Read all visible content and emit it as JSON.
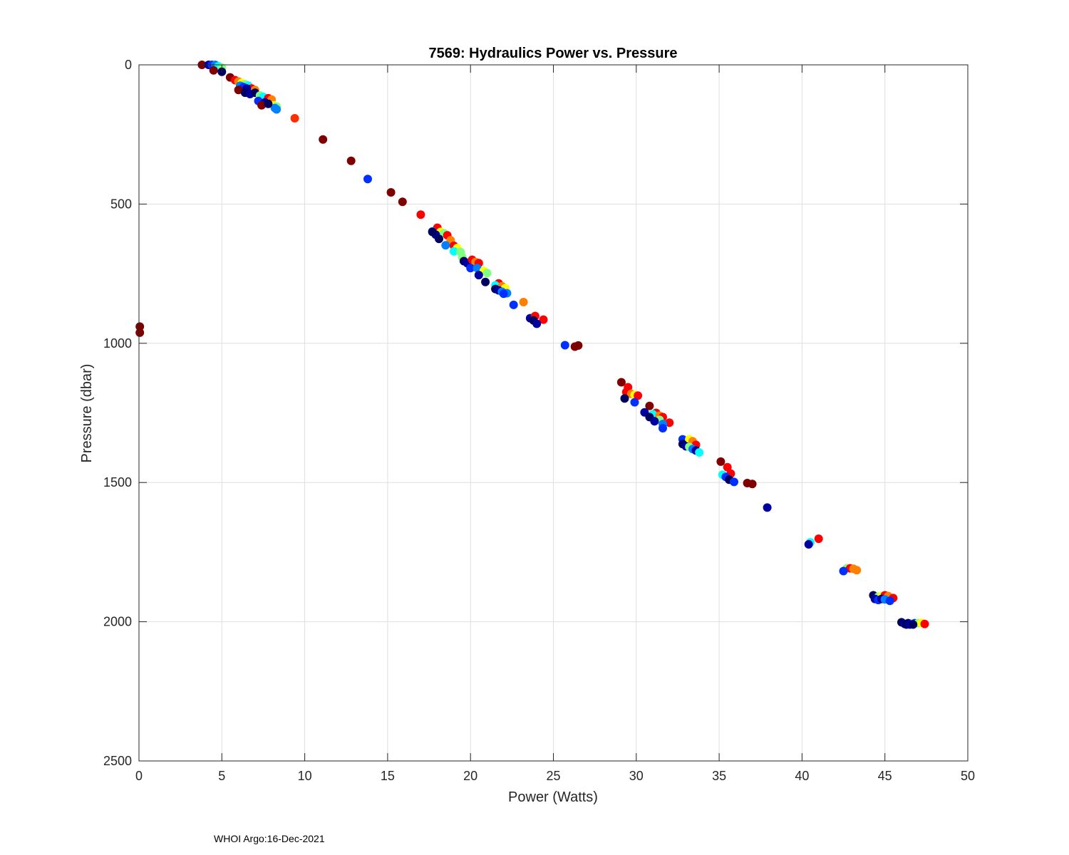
{
  "footer": {
    "note": "WHOI Argo:16-Dec-2021"
  },
  "chart_data": {
    "type": "scatter",
    "title": "7569: Hydraulics Power vs. Pressure",
    "xlabel": "Power (Watts)",
    "ylabel": "Pressure (dbar)",
    "xlim": [
      0,
      50
    ],
    "ylim": [
      0,
      2500
    ],
    "y_reversed": true,
    "xticks": [
      0,
      5,
      10,
      15,
      20,
      25,
      30,
      35,
      40,
      45,
      50
    ],
    "yticks": [
      0,
      500,
      1000,
      1500,
      2000,
      2500
    ],
    "grid": true,
    "colormap": "jet",
    "colors": {
      "darkred": "#7f0000",
      "red": "#ff0000",
      "redorange": "#ff3000",
      "orange": "#ff8000",
      "yellow": "#ffff00",
      "lime": "#80ff80",
      "cyan": "#00ffff",
      "sky": "#0080ff",
      "blue": "#0030ff",
      "navy": "#0000a0",
      "darknavy": "#00005f"
    },
    "points": [
      {
        "x": 3.8,
        "y": 0,
        "c": "darkred"
      },
      {
        "x": 4.2,
        "y": 0,
        "c": "navy"
      },
      {
        "x": 4.4,
        "y": 0,
        "c": "blue"
      },
      {
        "x": 4.6,
        "y": 0,
        "c": "sky"
      },
      {
        "x": 4.8,
        "y": 5,
        "c": "cyan"
      },
      {
        "x": 5.0,
        "y": 10,
        "c": "lime"
      },
      {
        "x": 4.5,
        "y": 20,
        "c": "darkred"
      },
      {
        "x": 5.0,
        "y": 25,
        "c": "darknavy"
      },
      {
        "x": 5.5,
        "y": 45,
        "c": "darkred"
      },
      {
        "x": 5.8,
        "y": 55,
        "c": "red"
      },
      {
        "x": 6.0,
        "y": 60,
        "c": "orange"
      },
      {
        "x": 6.2,
        "y": 65,
        "c": "yellow"
      },
      {
        "x": 6.4,
        "y": 70,
        "c": "lime"
      },
      {
        "x": 6.6,
        "y": 75,
        "c": "cyan"
      },
      {
        "x": 6.8,
        "y": 85,
        "c": "red"
      },
      {
        "x": 7.0,
        "y": 90,
        "c": "orange"
      },
      {
        "x": 6.1,
        "y": 75,
        "c": "sky"
      },
      {
        "x": 6.3,
        "y": 80,
        "c": "blue"
      },
      {
        "x": 6.5,
        "y": 85,
        "c": "navy"
      },
      {
        "x": 6.0,
        "y": 90,
        "c": "darkred"
      },
      {
        "x": 6.4,
        "y": 100,
        "c": "darknavy"
      },
      {
        "x": 6.7,
        "y": 105,
        "c": "navy"
      },
      {
        "x": 7.0,
        "y": 100,
        "c": "darknavy"
      },
      {
        "x": 7.3,
        "y": 110,
        "c": "lime"
      },
      {
        "x": 7.5,
        "y": 115,
        "c": "cyan"
      },
      {
        "x": 7.8,
        "y": 120,
        "c": "red"
      },
      {
        "x": 8.0,
        "y": 125,
        "c": "orange"
      },
      {
        "x": 7.2,
        "y": 130,
        "c": "blue"
      },
      {
        "x": 7.6,
        "y": 135,
        "c": "navy"
      },
      {
        "x": 7.4,
        "y": 145,
        "c": "darkred"
      },
      {
        "x": 8.1,
        "y": 145,
        "c": "yellow"
      },
      {
        "x": 8.3,
        "y": 150,
        "c": "lime"
      },
      {
        "x": 8.2,
        "y": 155,
        "c": "sky"
      },
      {
        "x": 8.3,
        "y": 160,
        "c": "sky"
      },
      {
        "x": 7.8,
        "y": 140,
        "c": "darknavy"
      },
      {
        "x": 9.4,
        "y": 192,
        "c": "redorange"
      },
      {
        "x": 11.1,
        "y": 268,
        "c": "darkred"
      },
      {
        "x": 12.8,
        "y": 345,
        "c": "darkred"
      },
      {
        "x": 13.8,
        "y": 410,
        "c": "blue"
      },
      {
        "x": 15.2,
        "y": 458,
        "c": "darkred"
      },
      {
        "x": 15.9,
        "y": 492,
        "c": "darkred"
      },
      {
        "x": 17.0,
        "y": 538,
        "c": "red"
      },
      {
        "x": 18.0,
        "y": 585,
        "c": "red"
      },
      {
        "x": 18.2,
        "y": 600,
        "c": "yellow"
      },
      {
        "x": 18.4,
        "y": 605,
        "c": "lime"
      },
      {
        "x": 18.6,
        "y": 612,
        "c": "red"
      },
      {
        "x": 17.7,
        "y": 598,
        "c": "sky"
      },
      {
        "x": 17.9,
        "y": 610,
        "c": "navy"
      },
      {
        "x": 17.7,
        "y": 600,
        "c": "darknavy"
      },
      {
        "x": 18.1,
        "y": 625,
        "c": "darknavy"
      },
      {
        "x": 18.8,
        "y": 630,
        "c": "orange"
      },
      {
        "x": 18.5,
        "y": 648,
        "c": "sky"
      },
      {
        "x": 19.0,
        "y": 650,
        "c": "red"
      },
      {
        "x": 19.2,
        "y": 658,
        "c": "yellow"
      },
      {
        "x": 19.0,
        "y": 670,
        "c": "cyan"
      },
      {
        "x": 19.4,
        "y": 672,
        "c": "lime"
      },
      {
        "x": 19.5,
        "y": 690,
        "c": "lime"
      },
      {
        "x": 19.6,
        "y": 705,
        "c": "darknavy"
      },
      {
        "x": 19.8,
        "y": 712,
        "c": "navy"
      },
      {
        "x": 20.1,
        "y": 700,
        "c": "red"
      },
      {
        "x": 20.3,
        "y": 708,
        "c": "orange"
      },
      {
        "x": 20.5,
        "y": 712,
        "c": "red"
      },
      {
        "x": 20.0,
        "y": 730,
        "c": "blue"
      },
      {
        "x": 20.4,
        "y": 730,
        "c": "sky"
      },
      {
        "x": 20.8,
        "y": 740,
        "c": "yellow"
      },
      {
        "x": 21.0,
        "y": 748,
        "c": "lime"
      },
      {
        "x": 20.5,
        "y": 755,
        "c": "navy"
      },
      {
        "x": 20.9,
        "y": 780,
        "c": "darknavy"
      },
      {
        "x": 21.7,
        "y": 785,
        "c": "red"
      },
      {
        "x": 21.5,
        "y": 792,
        "c": "cyan"
      },
      {
        "x": 21.9,
        "y": 795,
        "c": "orange"
      },
      {
        "x": 22.1,
        "y": 802,
        "c": "yellow"
      },
      {
        "x": 21.5,
        "y": 805,
        "c": "darknavy"
      },
      {
        "x": 21.7,
        "y": 810,
        "c": "navy"
      },
      {
        "x": 21.9,
        "y": 815,
        "c": "sky"
      },
      {
        "x": 22.2,
        "y": 820,
        "c": "sky"
      },
      {
        "x": 22.0,
        "y": 822,
        "c": "blue"
      },
      {
        "x": 22.6,
        "y": 862,
        "c": "blue"
      },
      {
        "x": 23.2,
        "y": 852,
        "c": "orange"
      },
      {
        "x": 23.6,
        "y": 910,
        "c": "navy"
      },
      {
        "x": 23.9,
        "y": 902,
        "c": "red"
      },
      {
        "x": 23.8,
        "y": 918,
        "c": "darknavy"
      },
      {
        "x": 24.4,
        "y": 915,
        "c": "red"
      },
      {
        "x": 24.0,
        "y": 930,
        "c": "navy"
      },
      {
        "x": 0.05,
        "y": 940,
        "c": "darkred"
      },
      {
        "x": 0.05,
        "y": 962,
        "c": "darkred"
      },
      {
        "x": 25.7,
        "y": 1007,
        "c": "blue"
      },
      {
        "x": 26.3,
        "y": 1012,
        "c": "darkred"
      },
      {
        "x": 26.5,
        "y": 1008,
        "c": "darkred"
      },
      {
        "x": 29.1,
        "y": 1140,
        "c": "darkred"
      },
      {
        "x": 29.5,
        "y": 1158,
        "c": "red"
      },
      {
        "x": 29.4,
        "y": 1175,
        "c": "red"
      },
      {
        "x": 29.7,
        "y": 1182,
        "c": "orange"
      },
      {
        "x": 29.9,
        "y": 1185,
        "c": "yellow"
      },
      {
        "x": 30.1,
        "y": 1188,
        "c": "red"
      },
      {
        "x": 29.3,
        "y": 1198,
        "c": "darknavy"
      },
      {
        "x": 29.9,
        "y": 1212,
        "c": "blue"
      },
      {
        "x": 30.8,
        "y": 1225,
        "c": "darkred"
      },
      {
        "x": 31.2,
        "y": 1250,
        "c": "red"
      },
      {
        "x": 30.5,
        "y": 1248,
        "c": "navy"
      },
      {
        "x": 31.0,
        "y": 1255,
        "c": "cyan"
      },
      {
        "x": 31.4,
        "y": 1260,
        "c": "orange"
      },
      {
        "x": 31.6,
        "y": 1265,
        "c": "red"
      },
      {
        "x": 30.8,
        "y": 1265,
        "c": "darknavy"
      },
      {
        "x": 31.4,
        "y": 1275,
        "c": "lime"
      },
      {
        "x": 31.1,
        "y": 1280,
        "c": "navy"
      },
      {
        "x": 32.0,
        "y": 1285,
        "c": "red"
      },
      {
        "x": 31.6,
        "y": 1290,
        "c": "sky"
      },
      {
        "x": 31.6,
        "y": 1305,
        "c": "blue"
      },
      {
        "x": 32.8,
        "y": 1345,
        "c": "blue"
      },
      {
        "x": 33.2,
        "y": 1345,
        "c": "yellow"
      },
      {
        "x": 33.4,
        "y": 1352,
        "c": "orange"
      },
      {
        "x": 33.6,
        "y": 1365,
        "c": "red"
      },
      {
        "x": 32.8,
        "y": 1362,
        "c": "darknavy"
      },
      {
        "x": 33.0,
        "y": 1370,
        "c": "navy"
      },
      {
        "x": 33.2,
        "y": 1372,
        "c": "lime"
      },
      {
        "x": 33.4,
        "y": 1380,
        "c": "sky"
      },
      {
        "x": 33.6,
        "y": 1385,
        "c": "navy"
      },
      {
        "x": 33.8,
        "y": 1392,
        "c": "cyan"
      },
      {
        "x": 35.1,
        "y": 1425,
        "c": "darkred"
      },
      {
        "x": 35.5,
        "y": 1445,
        "c": "red"
      },
      {
        "x": 35.7,
        "y": 1468,
        "c": "red"
      },
      {
        "x": 35.2,
        "y": 1472,
        "c": "cyan"
      },
      {
        "x": 35.4,
        "y": 1480,
        "c": "blue"
      },
      {
        "x": 35.6,
        "y": 1490,
        "c": "darknavy"
      },
      {
        "x": 35.9,
        "y": 1498,
        "c": "blue"
      },
      {
        "x": 36.7,
        "y": 1502,
        "c": "darkred"
      },
      {
        "x": 37.0,
        "y": 1505,
        "c": "darkred"
      },
      {
        "x": 37.9,
        "y": 1590,
        "c": "navy"
      },
      {
        "x": 40.5,
        "y": 1715,
        "c": "cyan"
      },
      {
        "x": 40.4,
        "y": 1722,
        "c": "navy"
      },
      {
        "x": 41.0,
        "y": 1702,
        "c": "red"
      },
      {
        "x": 42.7,
        "y": 1808,
        "c": "lime"
      },
      {
        "x": 42.9,
        "y": 1808,
        "c": "red"
      },
      {
        "x": 43.1,
        "y": 1810,
        "c": "orange"
      },
      {
        "x": 42.5,
        "y": 1818,
        "c": "blue"
      },
      {
        "x": 43.3,
        "y": 1815,
        "c": "orange"
      },
      {
        "x": 44.3,
        "y": 1905,
        "c": "darknavy"
      },
      {
        "x": 44.6,
        "y": 1910,
        "c": "lime"
      },
      {
        "x": 44.8,
        "y": 1908,
        "c": "yellow"
      },
      {
        "x": 45.0,
        "y": 1905,
        "c": "red"
      },
      {
        "x": 45.2,
        "y": 1908,
        "c": "orange"
      },
      {
        "x": 45.5,
        "y": 1915,
        "c": "red"
      },
      {
        "x": 44.4,
        "y": 1918,
        "c": "navy"
      },
      {
        "x": 44.6,
        "y": 1922,
        "c": "blue"
      },
      {
        "x": 44.8,
        "y": 1918,
        "c": "navy"
      },
      {
        "x": 45.0,
        "y": 1920,
        "c": "sky"
      },
      {
        "x": 45.3,
        "y": 1925,
        "c": "blue"
      },
      {
        "x": 46.0,
        "y": 2002,
        "c": "darknavy"
      },
      {
        "x": 46.2,
        "y": 2008,
        "c": "navy"
      },
      {
        "x": 46.4,
        "y": 2005,
        "c": "darknavy"
      },
      {
        "x": 46.6,
        "y": 2008,
        "c": "sky"
      },
      {
        "x": 46.8,
        "y": 2005,
        "c": "blue"
      },
      {
        "x": 47.0,
        "y": 2005,
        "c": "lime"
      },
      {
        "x": 47.2,
        "y": 2004,
        "c": "yellow"
      },
      {
        "x": 47.4,
        "y": 2008,
        "c": "red"
      },
      {
        "x": 46.3,
        "y": 2010,
        "c": "darknavy"
      },
      {
        "x": 46.5,
        "y": 2010,
        "c": "navy"
      },
      {
        "x": 46.7,
        "y": 2010,
        "c": "darknavy"
      }
    ]
  }
}
